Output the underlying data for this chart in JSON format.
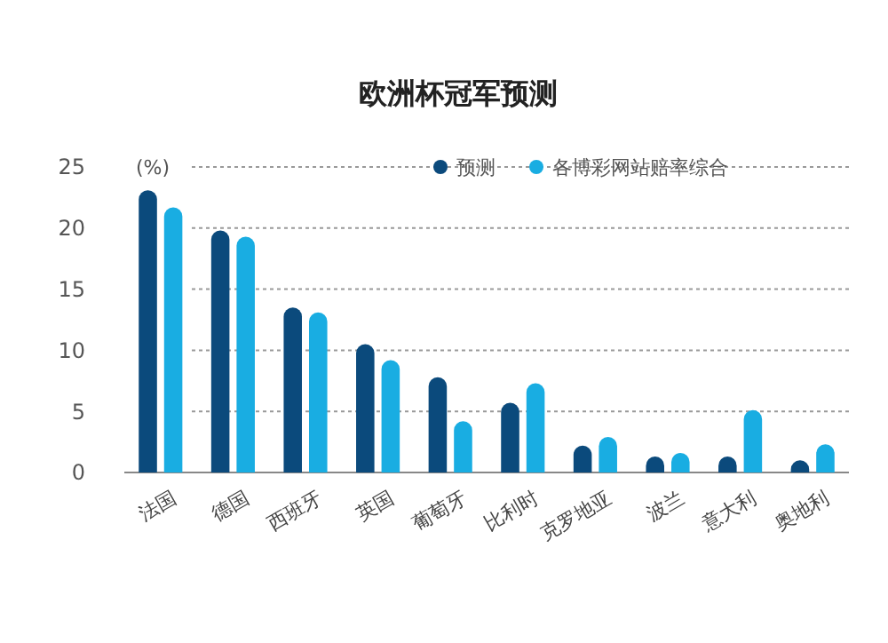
{
  "chart_data": {
    "type": "bar",
    "title": "欧洲杯冠军预测",
    "ylabel": "(%)",
    "categories": [
      "法国",
      "德国",
      "西班牙",
      "英国",
      "葡萄牙",
      "比利时",
      "克罗地亚",
      "波兰",
      "意大利",
      "奥地利"
    ],
    "series": [
      {
        "name": "预测",
        "color": "#0b4a7c",
        "values": [
          23.1,
          19.8,
          13.5,
          10.5,
          7.8,
          5.7,
          2.2,
          1.3,
          1.3,
          1.0
        ]
      },
      {
        "name": "各博彩网站赔率综合",
        "color": "#19ade2",
        "values": [
          21.7,
          19.3,
          13.1,
          9.2,
          4.2,
          7.3,
          2.9,
          1.6,
          5.1,
          2.3
        ]
      }
    ],
    "ylim": [
      0,
      25
    ],
    "yticks": [
      0,
      5,
      10,
      15,
      20,
      25
    ],
    "grid": "y",
    "legend": "top right"
  }
}
